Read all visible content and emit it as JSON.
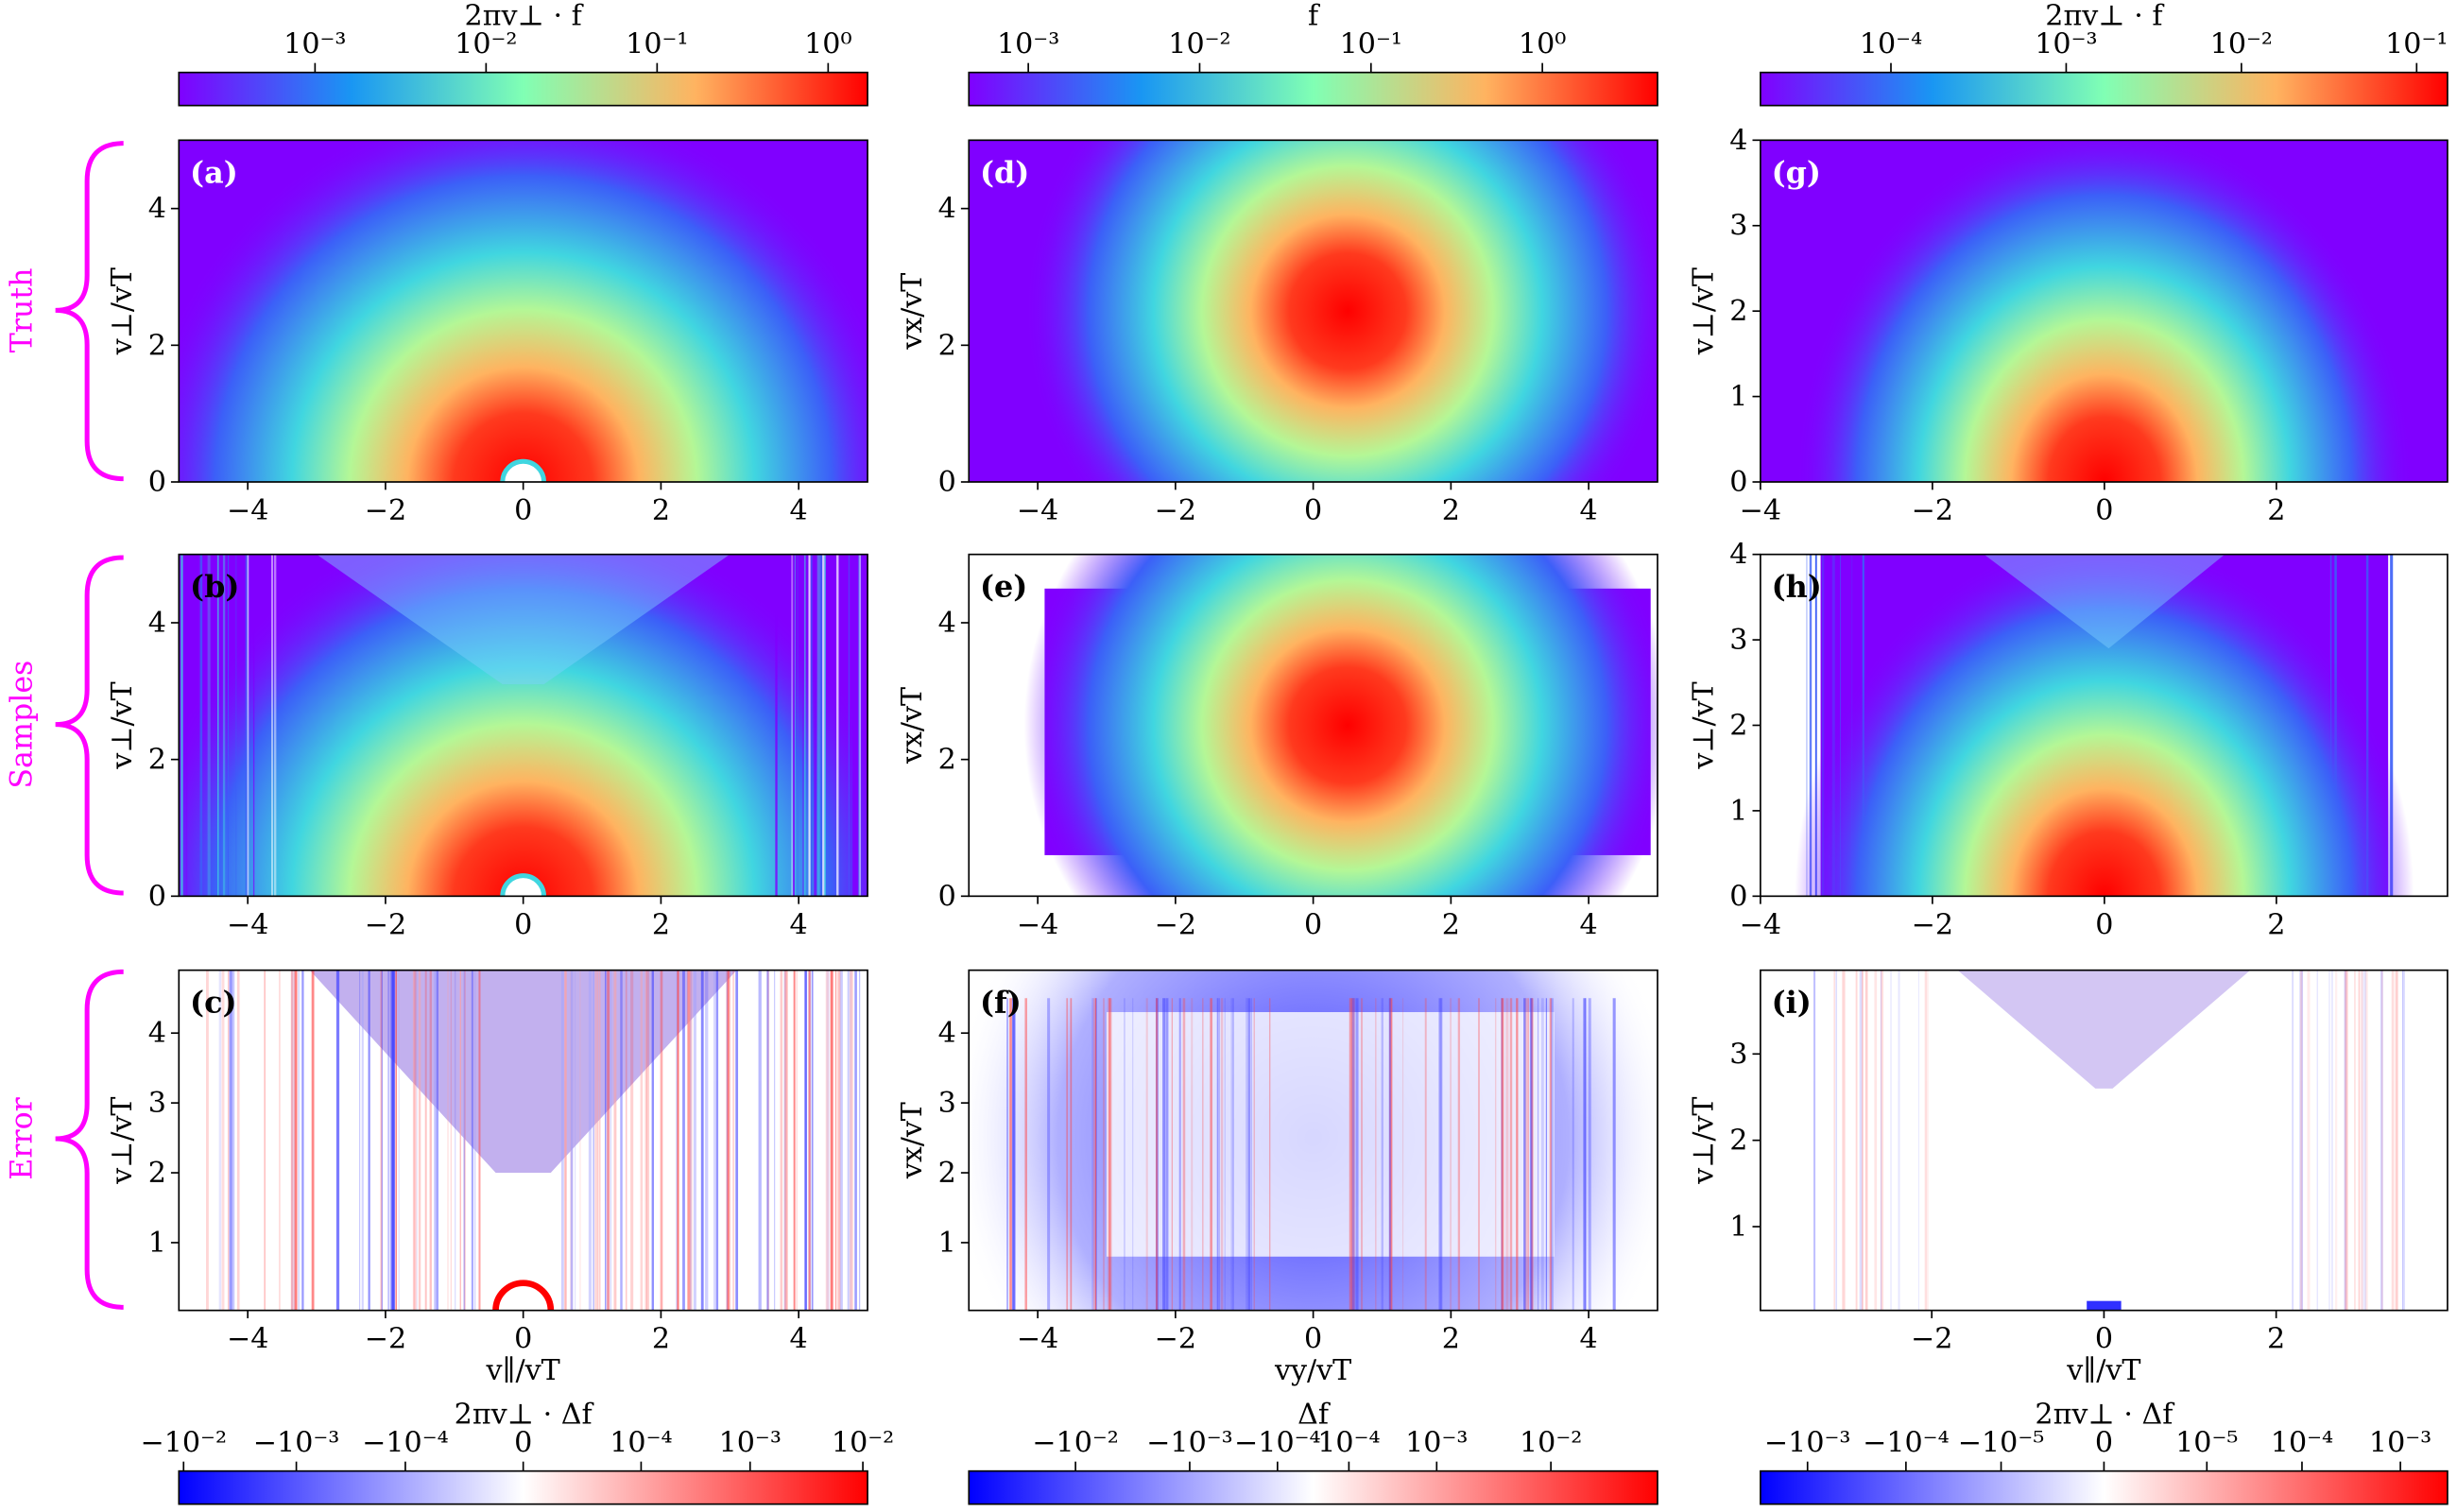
{
  "row_labels": [
    "Truth",
    "Samples",
    "Error"
  ],
  "colorbars": [
    {
      "label": "2πv⊥ · f",
      "location": "top",
      "colormap": "rainbow",
      "scale": "log",
      "lim": [
        0.00016,
        1.7
      ],
      "ticks": [
        {
          "value": 0.001,
          "label": "10⁻³"
        },
        {
          "value": 0.01,
          "label": "10⁻²"
        },
        {
          "value": 0.1,
          "label": "10⁻¹"
        },
        {
          "value": 1,
          "label": "10⁰"
        }
      ]
    },
    {
      "label": "f",
      "location": "top",
      "colormap": "rainbow",
      "scale": "log",
      "lim": [
        0.00045,
        4.7
      ],
      "ticks": [
        {
          "value": 0.001,
          "label": "10⁻³"
        },
        {
          "value": 0.01,
          "label": "10⁻²"
        },
        {
          "value": 0.1,
          "label": "10⁻¹"
        },
        {
          "value": 1,
          "label": "10⁰"
        }
      ]
    },
    {
      "label": "2πv⊥ · f",
      "location": "top",
      "colormap": "rainbow",
      "scale": "log",
      "lim": [
        1.8e-05,
        0.15
      ],
      "ticks": [
        {
          "value": 0.0001,
          "label": "10⁻⁴"
        },
        {
          "value": 0.001,
          "label": "10⁻³"
        },
        {
          "value": 0.01,
          "label": "10⁻²"
        },
        {
          "value": 0.1,
          "label": "10⁻¹"
        }
      ]
    },
    {
      "label": "2πv⊥ · Δf",
      "location": "bottom",
      "colormap": "bwr",
      "scale": "symlog",
      "linthresh": 1e-05,
      "lim": [
        -0.011,
        0.011
      ],
      "ticks": [
        {
          "value": -0.01,
          "label": "−10⁻²"
        },
        {
          "value": -0.001,
          "label": "−10⁻³"
        },
        {
          "value": -0.0001,
          "label": "−10⁻⁴"
        },
        0,
        {
          "value": 0.0001,
          "label": "10⁻⁴"
        },
        {
          "value": 0.001,
          "label": "10⁻³"
        },
        {
          "value": 0.01,
          "label": "10⁻²"
        }
      ]
    },
    {
      "label": "Δf",
      "location": "bottom",
      "colormap": "bwr",
      "scale": "symlog",
      "linthresh": 0.0001,
      "lim": [
        -0.08,
        0.08
      ],
      "ticks": [
        {
          "value": -0.01,
          "label": "−10⁻²"
        },
        {
          "value": -0.001,
          "label": "−10⁻³"
        },
        {
          "value": -0.0001,
          "label": "−10⁻⁴"
        },
        {
          "value": 0.0001,
          "label": "10⁻⁴"
        },
        {
          "value": 0.001,
          "label": "10⁻³"
        },
        {
          "value": 0.01,
          "label": "10⁻²"
        }
      ]
    },
    {
      "label": "2πv⊥ · Δf",
      "location": "bottom",
      "colormap": "bwr",
      "scale": "symlog",
      "linthresh": 1e-06,
      "lim": [
        -0.003,
        0.003
      ],
      "ticks": [
        {
          "value": -0.001,
          "label": "−10⁻³"
        },
        {
          "value": -0.0001,
          "label": "−10⁻⁴"
        },
        {
          "value": -1e-05,
          "label": "−10⁻⁵"
        },
        0,
        {
          "value": 1e-05,
          "label": "10⁻⁵"
        },
        {
          "value": 0.0001,
          "label": "10⁻⁴"
        },
        {
          "value": 0.001,
          "label": "10⁻³"
        }
      ]
    }
  ],
  "chart_data": [
    {
      "type": "heatmap",
      "panel_label": "(a)",
      "ylabel": "v⊥/vT",
      "xlim": [
        -5,
        5
      ],
      "ylim": [
        0,
        5
      ],
      "xticks": [
        {
          "value": -4,
          "label": "−4"
        },
        {
          "value": -2,
          "label": "−2"
        },
        0,
        2,
        4
      ],
      "yticks": [
        0,
        2,
        4
      ]
    },
    {
      "type": "heatmap",
      "panel_label": "(b)",
      "ylabel": "v⊥/vT",
      "xlim": [
        -5,
        5
      ],
      "ylim": [
        0,
        5
      ],
      "xticks": [
        {
          "value": -4,
          "label": "−4"
        },
        {
          "value": -2,
          "label": "−2"
        },
        0,
        2,
        4
      ],
      "yticks": [
        0,
        2,
        4
      ]
    },
    {
      "type": "heatmap",
      "panel_label": "(c)",
      "ylabel": "v⊥/vT",
      "xlabel": "v∥/vT",
      "xlim": [
        -5,
        5
      ],
      "ylim": [
        0.03,
        4.9
      ],
      "xticks": [
        {
          "value": -4,
          "label": "−4"
        },
        {
          "value": -2,
          "label": "−2"
        },
        0,
        2,
        4
      ],
      "yticks": [
        1,
        2,
        3,
        4
      ]
    },
    {
      "type": "heatmap",
      "panel_label": "(d)",
      "ylabel": "vx/vT",
      "xlim": [
        -5,
        5
      ],
      "ylim": [
        0,
        5
      ],
      "xticks": [
        {
          "value": -4,
          "label": "−4"
        },
        {
          "value": -2,
          "label": "−2"
        },
        0,
        2,
        4
      ],
      "yticks": [
        0,
        2,
        4
      ]
    },
    {
      "type": "heatmap",
      "panel_label": "(e)",
      "ylabel": "vx/vT",
      "xlim": [
        -5,
        5
      ],
      "ylim": [
        0,
        5
      ],
      "xticks": [
        {
          "value": -4,
          "label": "−4"
        },
        {
          "value": -2,
          "label": "−2"
        },
        0,
        2,
        4
      ],
      "yticks": [
        0,
        2,
        4
      ]
    },
    {
      "type": "heatmap",
      "panel_label": "(f)",
      "ylabel": "vx/vT",
      "xlabel": "vy/vT",
      "xlim": [
        -5,
        5
      ],
      "ylim": [
        0.03,
        4.9
      ],
      "xticks": [
        {
          "value": -4,
          "label": "−4"
        },
        {
          "value": -2,
          "label": "−2"
        },
        0,
        2,
        4
      ],
      "yticks": [
        1,
        2,
        3,
        4
      ]
    },
    {
      "type": "heatmap",
      "panel_label": "(g)",
      "ylabel": "v⊥/vT",
      "xlim": [
        -4,
        3.99
      ],
      "ylim": [
        0,
        4
      ],
      "xticks": [
        {
          "value": -4,
          "label": "−4"
        },
        {
          "value": -2,
          "label": "−2"
        },
        0,
        2
      ],
      "yticks": [
        0,
        1,
        2,
        3,
        4
      ]
    },
    {
      "type": "heatmap",
      "panel_label": "(h)",
      "ylabel": "v⊥/vT",
      "xlim": [
        -4,
        3.99
      ],
      "ylim": [
        0,
        4
      ],
      "xticks": [
        {
          "value": -4,
          "label": "−4"
        },
        {
          "value": -2,
          "label": "−2"
        },
        0,
        2
      ],
      "yticks": [
        0,
        1,
        2,
        3,
        4
      ]
    },
    {
      "type": "heatmap",
      "panel_label": "(i)",
      "ylabel": "v⊥/vT",
      "xlabel": "v∥/vT",
      "xlim": [
        -3.99,
        3.99
      ],
      "ylim": [
        0.03,
        3.97
      ],
      "xticks": [
        {
          "value": -2,
          "label": "−2"
        },
        0,
        2
      ],
      "yticks": [
        1,
        2,
        3
      ]
    }
  ]
}
